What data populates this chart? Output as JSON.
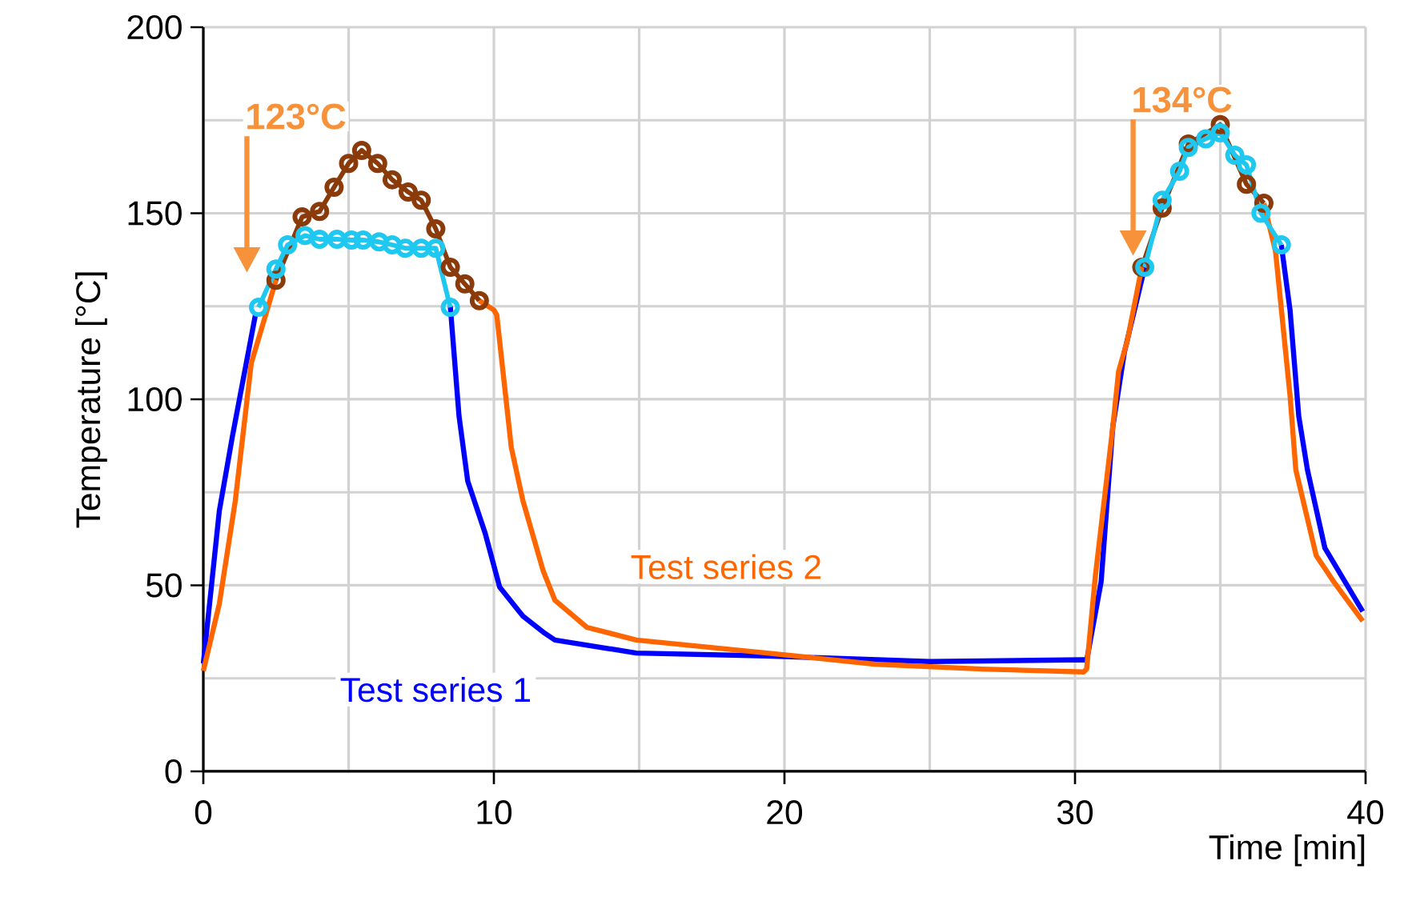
{
  "chart_data": {
    "type": "line",
    "xlabel": "Time [min]",
    "ylabel": "Temperature [°C]",
    "xlim": [
      0,
      40
    ],
    "ylim": [
      0,
      200
    ],
    "xticks": [
      0,
      10,
      20,
      30,
      40
    ],
    "yticks": [
      0,
      50,
      100,
      150,
      200
    ],
    "grid": true,
    "legend": false,
    "line_style": "solid",
    "series": [
      {
        "name": "Test series 1",
        "color": "#0000ff",
        "marker": "none",
        "x": [
          0,
          0.55,
          1.0,
          1.8,
          2.5,
          2.9,
          3.5,
          4.0,
          4.6,
          5.1,
          5.5,
          6.05,
          6.5,
          6.95,
          7.5,
          8.0,
          8.5,
          8.8,
          9.1,
          9.7,
          10.2,
          11.0,
          11.7,
          12.1,
          14.9,
          19.4,
          25,
          30.3,
          30.4,
          30.9,
          31.3,
          31.7,
          32.4,
          33.0,
          33.6,
          33.9,
          34.5,
          35.0,
          35.5,
          35.9,
          36.4,
          37.1,
          37.4,
          37.7,
          38.0,
          38.6,
          39.9
        ],
        "values": [
          29,
          70,
          90,
          123,
          null,
          null,
          null,
          null,
          null,
          null,
          null,
          null,
          null,
          null,
          null,
          null,
          125,
          95.5,
          78,
          64,
          49.5,
          41.7,
          37.4,
          35.3,
          31.8,
          31,
          29.5,
          30,
          29.7,
          51,
          92.5,
          112.7,
          135.5,
          null,
          null,
          null,
          null,
          null,
          null,
          null,
          null,
          141.5,
          124,
          95.5,
          81,
          60,
          43
        ]
      },
      {
        "name": "Test series 2",
        "color": "#ff6600",
        "marker": "none",
        "x": [
          0,
          0.55,
          1.1,
          1.65,
          2.5,
          3.4,
          4.0,
          4.5,
          5.0,
          5.45,
          6.0,
          6.5,
          7.05,
          7.5,
          8.0,
          8.5,
          9.0,
          9.5,
          10.0,
          10.1,
          10.6,
          11.0,
          11.7,
          12.1,
          13.2,
          14.9,
          19.4,
          23.1,
          26.8,
          30.3,
          30.4,
          30.7,
          31.3,
          31.5,
          31.8,
          32.3,
          33.0,
          33.9,
          35.0,
          35.9,
          36.5,
          36.9,
          37.4,
          37.6,
          38.3,
          38.9,
          39.9
        ],
        "values": [
          27,
          45,
          72.7,
          109.7,
          132,
          null,
          null,
          null,
          null,
          null,
          null,
          null,
          null,
          null,
          null,
          null,
          null,
          126.5,
          124,
          122.6,
          87,
          72.7,
          53.8,
          46,
          38.7,
          35.3,
          31.8,
          28.8,
          27.5,
          26.7,
          27.5,
          52.5,
          92.5,
          107.5,
          115.7,
          135.5,
          null,
          null,
          null,
          null,
          152.7,
          139.8,
          101,
          81,
          58,
          51,
          40.4
        ]
      },
      {
        "color": "#8b3a0a",
        "marker": "circle",
        "x": [
          2.5,
          3.4,
          4.0,
          4.5,
          5.0,
          5.45,
          6.0,
          6.5,
          7.05,
          7.5,
          8.0,
          8.5,
          9.0,
          9.5
        ],
        "values": [
          132,
          149,
          150.5,
          157,
          163.4,
          166.9,
          163.4,
          159,
          155.7,
          153.5,
          145.8,
          135.5,
          131,
          126.5
        ]
      },
      {
        "color": "#8b3a0a",
        "marker": "circle",
        "x": [
          32.3,
          33.0,
          33.9,
          35.0,
          35.9,
          36.5
        ],
        "values": [
          135.5,
          151.4,
          168.6,
          173.8,
          157.8,
          152.7
        ]
      },
      {
        "color": "#1ec8f0",
        "marker": "circle",
        "x": [
          1.9,
          2.5,
          2.9,
          3.5,
          4.0,
          4.6,
          5.1,
          5.5,
          6.05,
          6.5,
          6.95,
          7.5,
          8.0,
          8.5
        ],
        "values": [
          124.7,
          135,
          141.5,
          144,
          143,
          143,
          142.8,
          142.8,
          142.3,
          141.5,
          140.6,
          140.6,
          140.6,
          124.7
        ]
      },
      {
        "color": "#1ec8f0",
        "marker": "circle",
        "x": [
          32.4,
          33.0,
          33.6,
          33.9,
          34.5,
          35.0,
          35.5,
          35.9,
          36.4,
          37.1
        ],
        "values": [
          135.5,
          153.5,
          161.3,
          167.7,
          170,
          171.6,
          165.6,
          163,
          150,
          141.5
        ]
      }
    ],
    "annotations": [
      "123°C",
      "134°C"
    ]
  }
}
